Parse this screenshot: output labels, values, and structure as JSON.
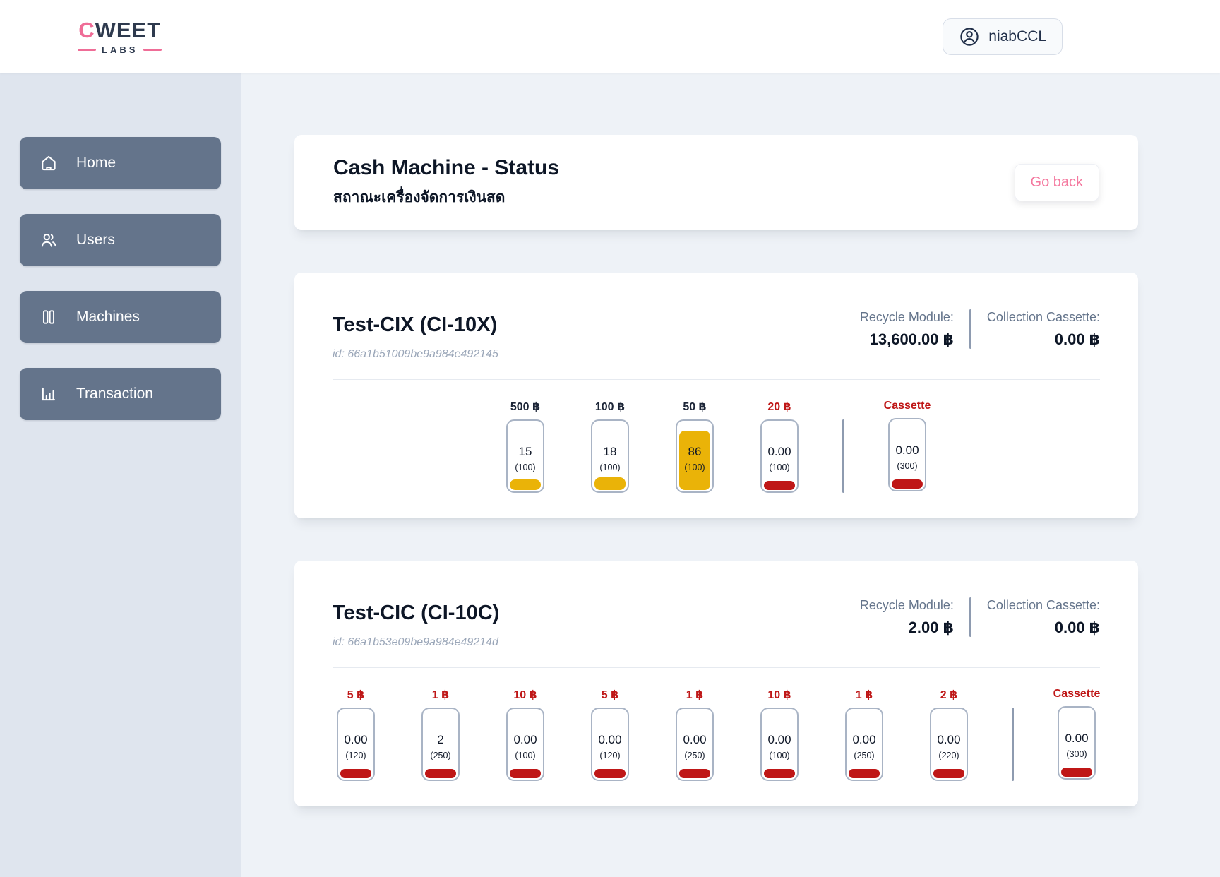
{
  "header": {
    "logo": {
      "c": "C",
      "rest": "WEET",
      "sub": "LABS"
    },
    "user": {
      "label": "niabCCL",
      "icon": "user-circle-icon"
    }
  },
  "sidebar": {
    "items": [
      {
        "label": "Home",
        "icon": "home-icon"
      },
      {
        "label": "Users",
        "icon": "users-icon"
      },
      {
        "label": "Machines",
        "icon": "machines-icon"
      },
      {
        "label": "Transaction",
        "icon": "transaction-icon"
      }
    ]
  },
  "page": {
    "title": "Cash Machine - Status",
    "subtitle": "สถาณะเครื่องจัดการเงินสด",
    "go_back_label": "Go back"
  },
  "machines": [
    {
      "name": "Test-CIX (CI-10X)",
      "id_text": "id: 66a1b51009be9a984e492145",
      "recycle_module": {
        "label": "Recycle Module:",
        "value": "13,600.00 ฿"
      },
      "collection_cassette": {
        "label": "Collection Cassette:",
        "value": "0.00 ฿"
      },
      "cassettes": [
        {
          "denom": "500 ฿",
          "value": "15",
          "capacity": "(100)",
          "fill_pct": 15,
          "state": "ok"
        },
        {
          "denom": "100 ฿",
          "value": "18",
          "capacity": "(100)",
          "fill_pct": 18,
          "state": "ok"
        },
        {
          "denom": "50 ฿",
          "value": "86",
          "capacity": "(100)",
          "fill_pct": 86,
          "state": "ok"
        },
        {
          "denom": "20 ฿",
          "value": "0.00",
          "capacity": "(100)",
          "fill_pct": 0,
          "state": "alert"
        },
        {
          "denom": "Cassette",
          "value": "0.00",
          "capacity": "(300)",
          "fill_pct": 0,
          "state": "alert",
          "divider_before": true
        }
      ]
    },
    {
      "name": "Test-CIC (CI-10C)",
      "id_text": "id: 66a1b53e09be9a984e49214d",
      "recycle_module": {
        "label": "Recycle Module:",
        "value": "2.00 ฿"
      },
      "collection_cassette": {
        "label": "Collection Cassette:",
        "value": "0.00 ฿"
      },
      "cassettes": [
        {
          "denom": "5 ฿",
          "value": "0.00",
          "capacity": "(120)",
          "fill_pct": 0,
          "state": "alert"
        },
        {
          "denom": "1 ฿",
          "value": "2",
          "capacity": "(250)",
          "fill_pct": 1,
          "state": "alert"
        },
        {
          "denom": "10 ฿",
          "value": "0.00",
          "capacity": "(100)",
          "fill_pct": 0,
          "state": "alert"
        },
        {
          "denom": "5 ฿",
          "value": "0.00",
          "capacity": "(120)",
          "fill_pct": 0,
          "state": "alert"
        },
        {
          "denom": "1 ฿",
          "value": "0.00",
          "capacity": "(250)",
          "fill_pct": 0,
          "state": "alert"
        },
        {
          "denom": "10 ฿",
          "value": "0.00",
          "capacity": "(100)",
          "fill_pct": 0,
          "state": "alert"
        },
        {
          "denom": "1 ฿",
          "value": "0.00",
          "capacity": "(250)",
          "fill_pct": 0,
          "state": "alert"
        },
        {
          "denom": "2 ฿",
          "value": "0.00",
          "capacity": "(220)",
          "fill_pct": 0,
          "state": "alert"
        },
        {
          "denom": "Cassette",
          "value": "0.00",
          "capacity": "(300)",
          "fill_pct": 0,
          "state": "alert",
          "divider_before": true
        }
      ]
    }
  ],
  "colors": {
    "accent_pink": "#ef6d97",
    "navy": "#0d1626",
    "slate_button": "#64748b",
    "alert_red": "#bf1717",
    "fill_yellow": "#eab308",
    "sidebar_bg": "#dfe5ee",
    "main_bg": "#eef2f7"
  }
}
